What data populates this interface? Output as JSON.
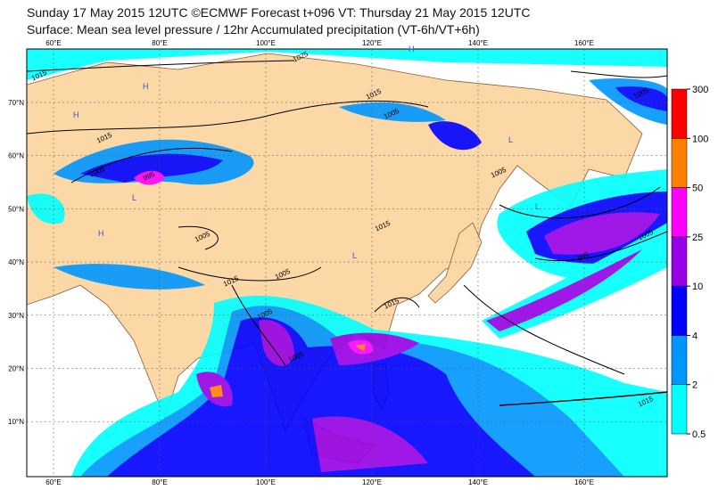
{
  "header": {
    "line1": "Sunday 17 May 2015 12UTC ©ECMWF Forecast t+096 VT: Thursday 21 May 2015 12UTC",
    "line2": "Surface: Mean sea level pressure / 12hr Accumulated precipitation (VT-6h/VT+6h)"
  },
  "map": {
    "lon_labels": [
      "60°E",
      "80°E",
      "100°E",
      "120°E",
      "140°E",
      "160°E"
    ],
    "lat_labels": [
      "70°N",
      "60°N",
      "50°N",
      "40°N",
      "30°N",
      "20°N",
      "10°N"
    ],
    "isobar_labels": [
      "1015",
      "1025",
      "1015",
      "1015",
      "1005",
      "995",
      "1005",
      "1005",
      "1015",
      "1015",
      "1005",
      "1005",
      "1005",
      "995",
      "1005",
      "1005",
      "1015",
      "1015",
      "1005"
    ],
    "pressure_centres": [
      "H",
      "H",
      "L",
      "L",
      "H",
      "L",
      "L",
      "H"
    ]
  },
  "colorbar": {
    "levels": [
      0.5,
      2,
      4,
      10,
      25,
      50,
      100,
      300
    ],
    "colors": [
      "#00ffff",
      "#0096ff",
      "#0000ff",
      "#9600e6",
      "#ff00ff",
      "#ff8000",
      "#ff0000"
    ]
  }
}
